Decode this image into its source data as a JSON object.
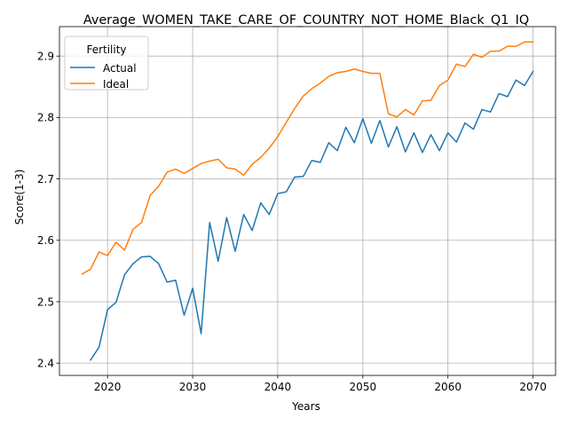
{
  "chart_data": {
    "type": "line",
    "title": "Average_WOMEN_TAKE_CARE_OF_COUNTRY_NOT_HOME_Black_Q1_IQ",
    "xlabel": "Years",
    "ylabel": "Score(1-3)",
    "xlim": [
      2014.35,
      2072.65
    ],
    "ylim": [
      2.38,
      2.948
    ],
    "xticks": [
      2020,
      2030,
      2040,
      2050,
      2060,
      2070
    ],
    "yticks": [
      2.4,
      2.5,
      2.6,
      2.7,
      2.8,
      2.9
    ],
    "grid": true,
    "legend": {
      "title": "Fertility",
      "placement": "top-left"
    },
    "series": [
      {
        "name": "Actual",
        "color": "#1f77b4",
        "x": [
          2018,
          2019,
          2020,
          2021,
          2022,
          2023,
          2024,
          2025,
          2026,
          2027,
          2028,
          2029,
          2030,
          2031,
          2032,
          2033,
          2034,
          2035,
          2036,
          2037,
          2038,
          2039,
          2040,
          2041,
          2042,
          2043,
          2044,
          2045,
          2046,
          2047,
          2048,
          2049,
          2050,
          2051,
          2052,
          2053,
          2054,
          2055,
          2056,
          2057,
          2058,
          2059,
          2060,
          2061,
          2062,
          2063,
          2064,
          2065,
          2066,
          2067,
          2068,
          2069,
          2070
        ],
        "values": [
          2.405,
          2.426,
          2.487,
          2.499,
          2.544,
          2.562,
          2.573,
          2.574,
          2.562,
          2.532,
          2.535,
          2.478,
          2.522,
          2.448,
          2.629,
          2.566,
          2.637,
          2.582,
          2.642,
          2.616,
          2.661,
          2.642,
          2.676,
          2.679,
          2.703,
          2.704,
          2.73,
          2.727,
          2.759,
          2.746,
          2.784,
          2.759,
          2.798,
          2.758,
          2.795,
          2.752,
          2.785,
          2.744,
          2.775,
          2.743,
          2.772,
          2.746,
          2.775,
          2.76,
          2.791,
          2.781,
          2.813,
          2.809,
          2.839,
          2.834,
          2.861,
          2.852,
          2.875
        ]
      },
      {
        "name": "Ideal",
        "color": "#ff7f0e",
        "x": [
          2017,
          2018,
          2019,
          2020,
          2021,
          2022,
          2023,
          2024,
          2025,
          2026,
          2027,
          2028,
          2029,
          2030,
          2031,
          2032,
          2033,
          2034,
          2035,
          2036,
          2037,
          2038,
          2039,
          2040,
          2041,
          2042,
          2043,
          2044,
          2045,
          2046,
          2047,
          2048,
          2049,
          2050,
          2051,
          2052,
          2053,
          2054,
          2055,
          2056,
          2057,
          2058,
          2059,
          2060,
          2061,
          2062,
          2063,
          2064,
          2065,
          2066,
          2067,
          2068,
          2069,
          2070
        ],
        "values": [
          2.545,
          2.553,
          2.581,
          2.575,
          2.597,
          2.584,
          2.618,
          2.629,
          2.673,
          2.688,
          2.711,
          2.716,
          2.709,
          2.717,
          2.725,
          2.729,
          2.732,
          2.718,
          2.716,
          2.706,
          2.724,
          2.735,
          2.75,
          2.769,
          2.792,
          2.815,
          2.835,
          2.847,
          2.856,
          2.867,
          2.873,
          2.875,
          2.879,
          2.875,
          2.872,
          2.872,
          2.806,
          2.801,
          2.813,
          2.804,
          2.827,
          2.828,
          2.852,
          2.861,
          2.887,
          2.883,
          2.903,
          2.898,
          2.908,
          2.908,
          2.916,
          2.916,
          2.923,
          2.923
        ]
      }
    ]
  }
}
